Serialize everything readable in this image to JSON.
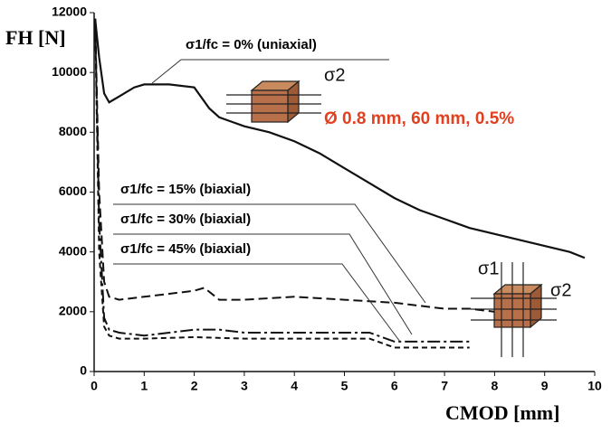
{
  "chart_data": {
    "type": "line",
    "x_label": "CMOD [mm]",
    "y_label": "FH [N]",
    "xlim": [
      0,
      10
    ],
    "xticks": [
      0,
      1,
      2,
      3,
      4,
      5,
      6,
      7,
      8,
      9,
      10
    ],
    "ylim": [
      0,
      12000
    ],
    "yticks": [
      0,
      2000,
      4000,
      6000,
      8000,
      10000,
      12000
    ],
    "annotations": [
      "Ø 0.8 mm, 60 mm, 0.5%",
      "σ2",
      "σ1",
      "σ2"
    ],
    "series": [
      {
        "name": "σ1/fc = 0% (uniaxial)",
        "color": "#111111",
        "line_style": "solid",
        "x": [
          0.02,
          0.1,
          0.2,
          0.3,
          0.5,
          0.8,
          1.0,
          1.5,
          2.0,
          2.3,
          2.5,
          3.0,
          3.5,
          4.0,
          4.5,
          5.0,
          5.5,
          6.0,
          6.5,
          7.0,
          7.5,
          8.0,
          8.5,
          9.0,
          9.5,
          9.8
        ],
        "values": [
          11800,
          10500,
          9300,
          9000,
          9200,
          9500,
          9600,
          9600,
          9500,
          8800,
          8500,
          8200,
          8000,
          7700,
          7300,
          6800,
          6300,
          5800,
          5400,
          5100,
          4800,
          4600,
          4400,
          4200,
          4000,
          3800
        ]
      },
      {
        "name": "σ1/fc = 15% (biaxial)",
        "color": "#111111",
        "line_style": "dashed",
        "x": [
          0.02,
          0.1,
          0.2,
          0.3,
          0.5,
          1.0,
          1.5,
          2.0,
          2.2,
          2.5,
          3.0,
          4.0,
          5.0,
          6.0,
          6.5,
          7.0,
          7.5,
          8.0
        ],
        "values": [
          11800,
          6000,
          3000,
          2500,
          2400,
          2500,
          2600,
          2700,
          2800,
          2400,
          2400,
          2500,
          2400,
          2300,
          2200,
          2100,
          2100,
          2000
        ]
      },
      {
        "name": "σ1/fc = 30% (biaxial)",
        "color": "#111111",
        "line_style": "dashed",
        "x": [
          0.02,
          0.1,
          0.2,
          0.3,
          0.5,
          1.0,
          1.5,
          2.0,
          2.5,
          3.0,
          4.0,
          5.0,
          5.5,
          6.0,
          7.0,
          7.5
        ],
        "values": [
          11800,
          5000,
          1800,
          1400,
          1300,
          1200,
          1300,
          1400,
          1400,
          1300,
          1300,
          1300,
          1300,
          1000,
          1000,
          1000
        ]
      },
      {
        "name": "σ1/fc = 45% (biaxial)",
        "color": "#111111",
        "line_style": "dashed",
        "x": [
          0.02,
          0.1,
          0.2,
          0.3,
          0.5,
          1.0,
          2.0,
          3.0,
          4.0,
          5.0,
          5.5,
          6.0,
          7.0,
          7.5
        ],
        "values": [
          11800,
          4000,
          1500,
          1200,
          1100,
          1100,
          1150,
          1100,
          1100,
          1100,
          1100,
          800,
          800,
          800
        ]
      }
    ]
  }
}
